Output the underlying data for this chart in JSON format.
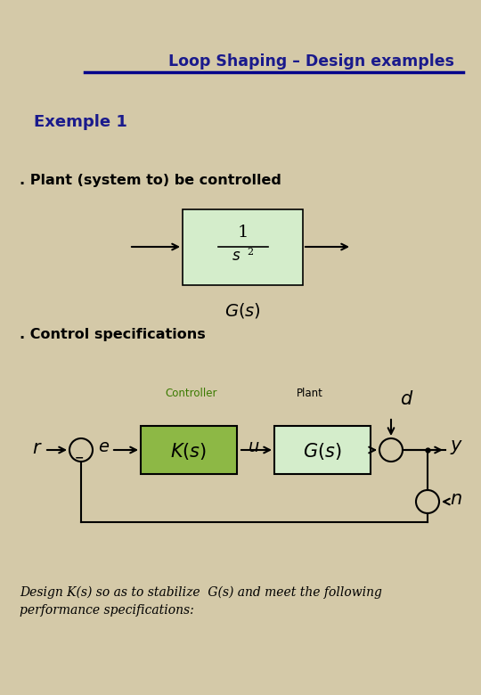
{
  "title": "Loop Shaping – Design examples",
  "title_color": "#1a1a8c",
  "bg_color": "#d4c9a8",
  "exemple_label": "Exemple 1",
  "plant_label": ". Plant (system to) be controlled",
  "control_label": ". Control specifications",
  "bottom_text1": "Design K(s) so as to stabilize  G(s) and meet the following",
  "bottom_text2": "performance specifications:",
  "controller_label": "Controller",
  "plant_box_label": "Plant",
  "box_green_light": "#d4edcb",
  "box_green_k": "#8db845",
  "box_green_g": "#d4edcb",
  "line_color": "#000000",
  "text_black": "#000000",
  "text_green": "#3a7a00",
  "title_line_color": "#00008b"
}
